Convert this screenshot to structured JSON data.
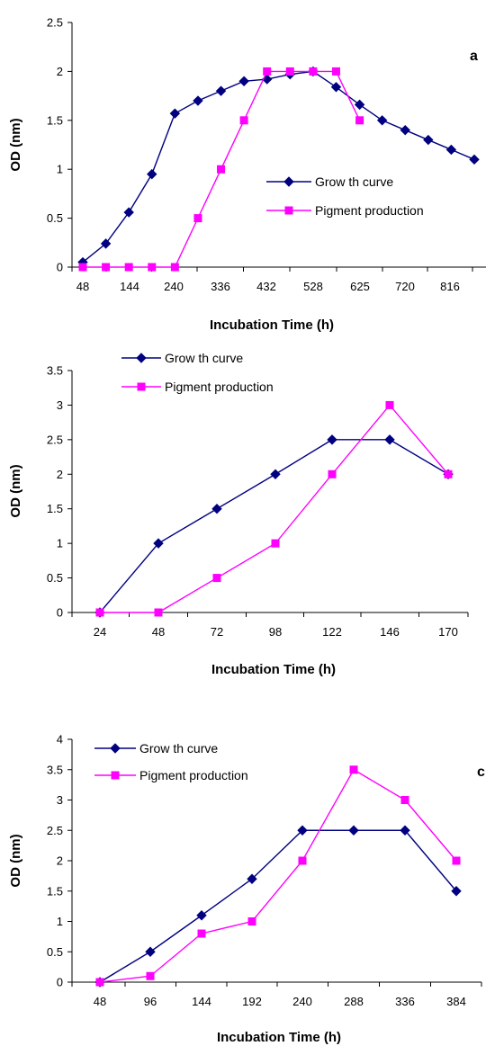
{
  "chart_data": [
    {
      "type": "line",
      "panel_label": "a",
      "xlabel": "Incubation Time (h)",
      "ylabel": "OD (nm)",
      "ylim": [
        0,
        2.5
      ],
      "yticks": [
        "0",
        "0.5",
        "1",
        "1.5",
        "2",
        "2.5"
      ],
      "x_tick_labels": [
        "48",
        "144",
        "240",
        "336",
        "432",
        "528",
        "625",
        "720",
        "816"
      ],
      "legend_position": "middle-right",
      "series": [
        {
          "name": "Grow th curve",
          "color": "#000080",
          "marker": "diamond",
          "x": [
            48,
            96,
            144,
            192,
            240,
            288,
            336,
            384,
            432,
            480,
            528,
            576,
            625,
            672,
            720,
            768,
            816,
            864
          ],
          "values": [
            0.05,
            0.24,
            0.56,
            0.95,
            1.57,
            1.7,
            1.8,
            1.9,
            1.92,
            1.97,
            2.0,
            1.84,
            1.66,
            1.5,
            1.4,
            1.3,
            1.2,
            1.1
          ]
        },
        {
          "name": "Pigment production",
          "color": "#ff00ff",
          "marker": "square",
          "x": [
            48,
            96,
            144,
            192,
            240,
            288,
            336,
            384,
            432,
            480,
            528,
            576,
            625
          ],
          "values": [
            0,
            0,
            0,
            0,
            0,
            0.5,
            1.0,
            1.5,
            2.0,
            2.0,
            2.0,
            2.0,
            1.5
          ]
        }
      ]
    },
    {
      "type": "line",
      "panel_label": "",
      "xlabel": "Incubation Time (h)",
      "ylabel": "OD (nm)",
      "ylim": [
        0,
        3.5
      ],
      "yticks": [
        "0",
        "0.5",
        "1",
        "1.5",
        "2",
        "2.5",
        "3",
        "3.5"
      ],
      "x_tick_labels": [
        "24",
        "48",
        "72",
        "98",
        "122",
        "146",
        "170"
      ],
      "legend_position": "top-left",
      "series": [
        {
          "name": "Grow th curve",
          "color": "#000080",
          "marker": "diamond",
          "x": [
            24,
            48,
            72,
            98,
            122,
            146,
            170
          ],
          "values": [
            0,
            1.0,
            1.5,
            2.0,
            2.5,
            2.5,
            2.0
          ]
        },
        {
          "name": "Pigment production",
          "color": "#ff00ff",
          "marker": "square",
          "x": [
            24,
            48,
            72,
            98,
            122,
            146,
            170
          ],
          "values": [
            0,
            0,
            0.5,
            1.0,
            2.0,
            3.0,
            2.0
          ]
        }
      ]
    },
    {
      "type": "line",
      "panel_label": "c",
      "xlabel": "Incubation Time (h)",
      "ylabel": "OD (nm)",
      "ylim": [
        0,
        4
      ],
      "yticks": [
        "0",
        "0.5",
        "1",
        "1.5",
        "2",
        "2.5",
        "3",
        "3.5",
        "4"
      ],
      "x_tick_labels": [
        "48",
        "96",
        "144",
        "192",
        "240",
        "288",
        "336",
        "384"
      ],
      "legend_position": "top-left",
      "series": [
        {
          "name": "Grow th curve",
          "color": "#000080",
          "marker": "diamond",
          "x": [
            48,
            96,
            144,
            192,
            240,
            288,
            336,
            384
          ],
          "values": [
            0,
            0.5,
            1.1,
            1.7,
            2.5,
            2.5,
            2.5,
            1.5
          ]
        },
        {
          "name": "Pigment production",
          "color": "#ff00ff",
          "marker": "square",
          "x": [
            48,
            96,
            144,
            192,
            240,
            288,
            336,
            384
          ],
          "values": [
            0,
            0.1,
            0.8,
            1.0,
            2.0,
            3.5,
            3.0,
            2.0
          ]
        }
      ]
    }
  ]
}
